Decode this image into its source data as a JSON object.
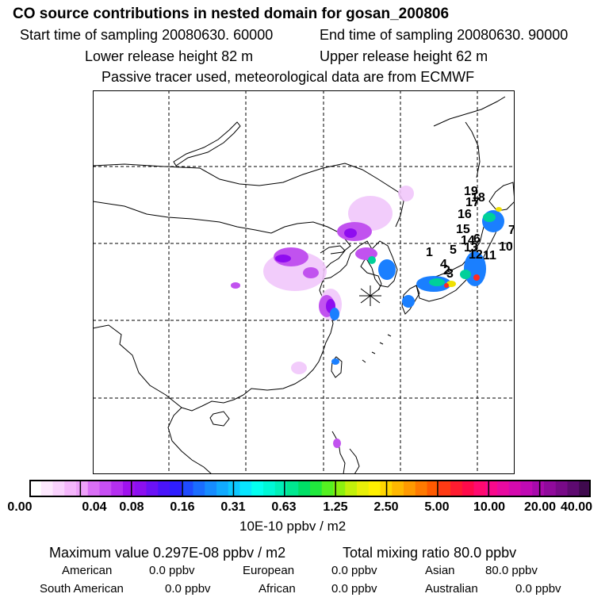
{
  "header": {
    "title": "CO  source contributions in nested domain for gosan_200806",
    "start_time": "Start time of sampling 20080630. 60000",
    "end_time": "End time of sampling 20080630. 90000",
    "lower_height": "Lower release height   82 m",
    "upper_height": "Upper release height   62 m",
    "note": "Passive tracer used, meteorological data are from ECMWF"
  },
  "map": {
    "station_marker": "asterisk",
    "receptor_labels": [
      "1",
      "2",
      "3",
      "4",
      "5",
      "6",
      "7",
      "10",
      "11",
      "12",
      "13",
      "14",
      "15",
      "16",
      "17",
      "18",
      "19"
    ]
  },
  "colorbar": {
    "tick_labels": [
      "0.00",
      "0.04",
      "0.08",
      "0.16",
      "0.31",
      "0.63",
      "1.25",
      "2.50",
      "5.00",
      "10.00",
      "20.00",
      "40.00"
    ],
    "colors": [
      "#ffffff",
      "#fde9fe",
      "#f9d2fd",
      "#f4b6fb",
      "#eea0fa",
      "#d96ff5",
      "#c74ff3",
      "#b52ff0",
      "#a012ee",
      "#8c10f0",
      "#6b12f5",
      "#4a14fa",
      "#2f1eff",
      "#1f4bff",
      "#1a6dff",
      "#168cff",
      "#11aaff",
      "#0dc8ff",
      "#09e6ff",
      "#04fff0",
      "#00f8d6",
      "#00f0b8",
      "#00e890",
      "#00de66",
      "#21e83d",
      "#55f021",
      "#8cf00e",
      "#c2f00a",
      "#e8ef08",
      "#fff000",
      "#ffd600",
      "#ffb800",
      "#ff9a00",
      "#ff7a00",
      "#ff5a00",
      "#ff3a14",
      "#ff1c30",
      "#ff0a4a",
      "#ff0a70",
      "#f8098c",
      "#e80aa0",
      "#d40aae",
      "#c00ab4",
      "#a80aac",
      "#900a9c",
      "#780a88",
      "#5e0a70",
      "#3f0a4e"
    ],
    "units": "10E-10 ppbv / m2"
  },
  "summary": {
    "max_value": "Maximum value  0.297E-08 ppbv / m2",
    "total_mixing": "Total mixing ratio       80.0 ppbv"
  },
  "regions": {
    "american_label": "American",
    "american_value": "0.0 ppbv",
    "european_label": "European",
    "european_value": "0.0 ppbv",
    "asian_label": "Asian",
    "asian_value": "80.0 ppbv",
    "south_american_label": "South American",
    "south_american_value": "0.0 ppbv",
    "african_label": "African",
    "african_value": "0.0 ppbv",
    "australian_label": "Australian",
    "australian_value": "0.0 ppbv"
  }
}
